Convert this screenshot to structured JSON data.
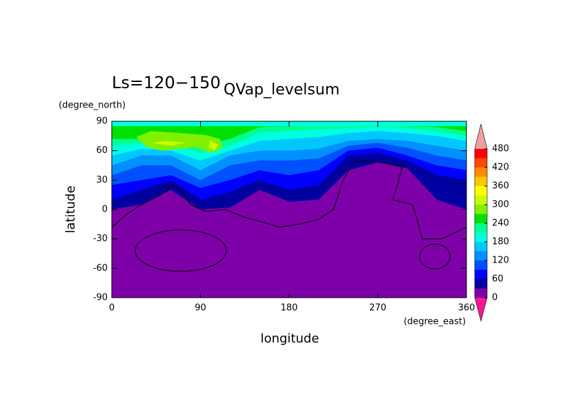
{
  "chart_data": {
    "type": "contour",
    "title": "Ls=120−150",
    "subtitle": "QVap_levelsum",
    "x_label": "longitude",
    "y_label": "latitude",
    "x_unit": "(degree_east)",
    "y_unit": "(degree_north)",
    "xlim": [
      0,
      360
    ],
    "ylim": [
      -90,
      90
    ],
    "xticks": [
      0,
      90,
      180,
      270,
      360
    ],
    "yticks": [
      90,
      60,
      30,
      0,
      -30,
      -60,
      -90
    ],
    "levels": [
      0,
      30,
      60,
      90,
      120,
      150,
      180,
      210,
      240,
      270,
      300,
      330,
      360,
      390,
      420,
      450,
      480
    ],
    "colors": [
      "#7d00a8",
      "#0000a0",
      "#0000ff",
      "#0050ff",
      "#0090ff",
      "#00c8ff",
      "#00ffe0",
      "#00ff90",
      "#00e000",
      "#80f000",
      "#c8ff00",
      "#ffff00",
      "#ffc800",
      "#ff8c00",
      "#ff4800",
      "#ff0000"
    ],
    "under_color": "#ff1493",
    "over_color": "#f0a0a0",
    "colorbar_ticks": [
      0,
      60,
      120,
      180,
      240,
      300,
      360,
      420,
      480
    ]
  }
}
